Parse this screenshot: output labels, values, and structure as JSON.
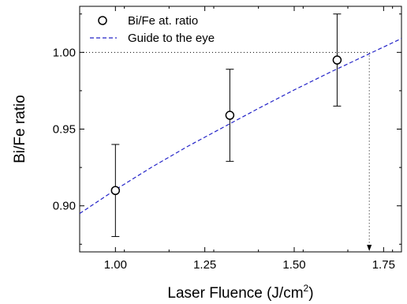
{
  "chart_data": {
    "type": "scatter",
    "xlabel": "Laser Fluence (J/cm",
    "xlabel_sup": "2",
    "xlabel_end": ")",
    "ylabel": "Bi/Fe ratio",
    "xlim": [
      0.9,
      1.8
    ],
    "ylim": [
      0.87,
      1.03
    ],
    "x_ticks": [
      1.0,
      1.25,
      1.5,
      1.75
    ],
    "x_tick_labels": [
      "1.00",
      "1.25",
      "1.50",
      "1.75"
    ],
    "y_ticks": [
      0.9,
      0.95,
      1.0
    ],
    "y_tick_labels": [
      "0.90",
      "0.95",
      "1.00"
    ],
    "series": [
      {
        "name": "Bi/Fe at. ratio",
        "marker": "open-circle",
        "x": [
          1.0,
          1.32,
          1.62
        ],
        "y": [
          0.91,
          0.959,
          0.995
        ],
        "yerr": [
          0.03,
          0.03,
          0.03
        ]
      },
      {
        "name": "Guide to the eye",
        "style": "dashed",
        "color": "#2323c8",
        "x": [
          0.9,
          1.0,
          1.1,
          1.2,
          1.3,
          1.4,
          1.5,
          1.6,
          1.7,
          1.8
        ],
        "y": [
          0.895,
          0.9105,
          0.925,
          0.9385,
          0.951,
          0.9635,
          0.9755,
          0.987,
          0.998,
          1.009
        ]
      }
    ],
    "reference_lines": {
      "y": 1.0,
      "x": 1.71,
      "style": "dotted",
      "x_arrow": true
    },
    "legend_position": "top-left",
    "grid": false
  }
}
